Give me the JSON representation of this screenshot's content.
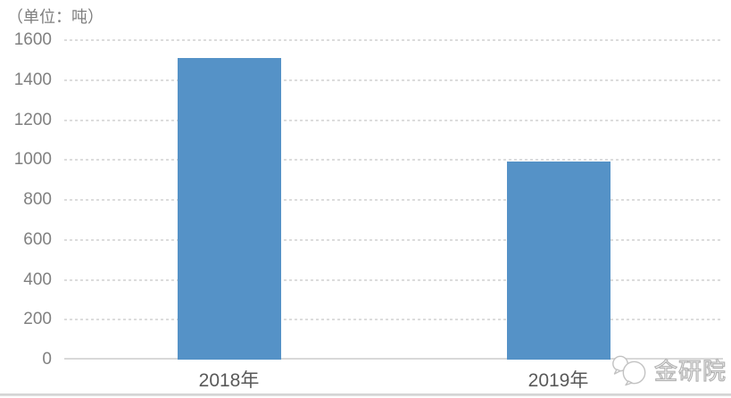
{
  "chart_data": {
    "type": "bar",
    "title": "（单位：吨）",
    "categories": [
      "2018年",
      "2019年"
    ],
    "values": [
      1510,
      990
    ],
    "xlabel": "",
    "ylabel": "",
    "ylim": [
      0,
      1600
    ],
    "yticks": [
      0,
      200,
      400,
      600,
      800,
      1000,
      1200,
      1400,
      1600
    ],
    "grid": "horizontal-dashed",
    "legend": "none",
    "bar_color": "#5592c7"
  },
  "watermark": {
    "icon": "wechat-chat-bubbles-icon",
    "text": "金研院"
  },
  "colors": {
    "bar": "#5592c7",
    "gridline": "#dcdcdc",
    "axis_line": "#d9d9d9",
    "tick_label": "#808080",
    "category_label": "#595959",
    "title": "#7f7f7f",
    "background": "#ffffff",
    "divider": "#cdcdcd"
  }
}
